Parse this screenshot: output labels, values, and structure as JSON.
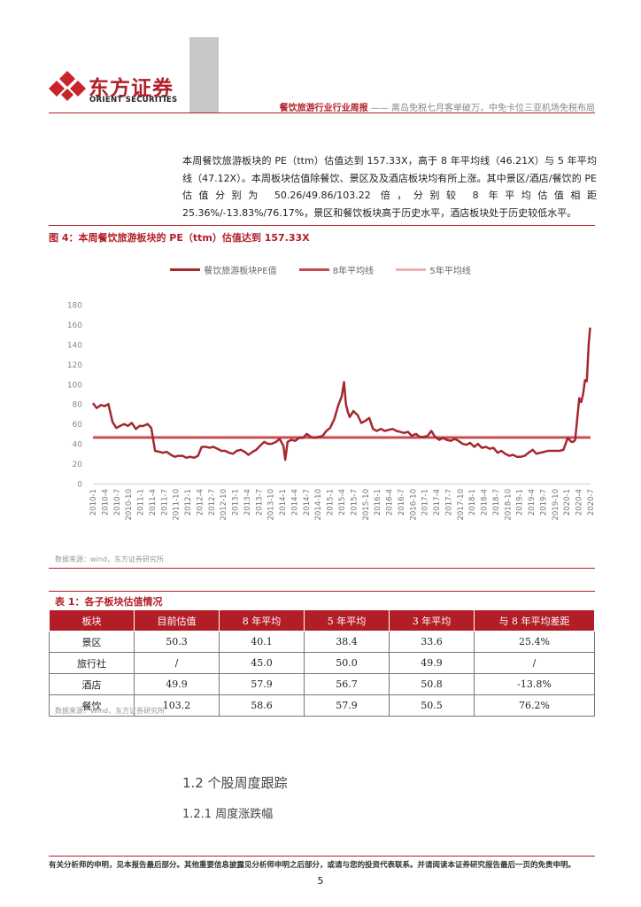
{
  "header": {
    "logo_cn": "东方证券",
    "logo_en": "ORIENT SECURITIES",
    "report_type": "餐饮旅游行业行业周报",
    "separator": "——",
    "report_subtitle": "离岛免税七月客单破万，中免卡位三亚机场免税布局"
  },
  "paragraph": "本周餐饮旅游板块的 PE（ttm）估值达到 157.33X，高于 8 年平均线（46.21X）与 5 年平均线（47.12X）。本周板块估值除餐饮、景区及及酒店板块均有所上涨。其中景区/酒店/餐饮的 PE 估值分别为 50.26/49.86/103.22 倍，分别较 8 年平均估值相距 25.36%/-13.83%/76.17%，景区和餐饮板块高于历史水平，酒店板块处于历史较低水平。",
  "figure": {
    "title": "图 4：本周餐饮旅游板块的 PE（ttm）估值达到 157.33X",
    "source": "数据来源：wind，东方证券研究所"
  },
  "chart_data": {
    "type": "line",
    "title": "",
    "xlabel": "",
    "ylabel": "",
    "ylim": [
      0,
      180
    ],
    "yticks": [
      0,
      20,
      40,
      60,
      80,
      100,
      120,
      140,
      160,
      180
    ],
    "xticks": [
      "2010-1",
      "2010-4",
      "2010-7",
      "2010-10",
      "2011-1",
      "2011-4",
      "2011-7",
      "2011-10",
      "2012-1",
      "2012-4",
      "2012-7",
      "2012-10",
      "2013-1",
      "2013-4",
      "2013-7",
      "2013-10",
      "2014-1",
      "2014-4",
      "2014-7",
      "2014-10",
      "2015-1",
      "2015-4",
      "2015-7",
      "2015-10",
      "2016-1",
      "2016-4",
      "2016-7",
      "2016-10",
      "2017-1",
      "2017-4",
      "2017-7",
      "2017-10",
      "2018-1",
      "2018-4",
      "2018-7",
      "2018-10",
      "2019-1",
      "2019-4",
      "2019-7",
      "2019-10",
      "2020-1",
      "2020-4",
      "2020-7"
    ],
    "legend_position": "top",
    "grid": false,
    "colors": {
      "pe": "#a3292f",
      "avg8": "#c44a4f",
      "avg5": "#eeb1b3"
    },
    "series": [
      {
        "name": "餐饮旅游板块PE值",
        "x": [
          2010.0,
          2010.08,
          2010.17,
          2010.25,
          2010.33,
          2010.42,
          2010.5,
          2010.58,
          2010.67,
          2010.75,
          2010.83,
          2010.92,
          2011.0,
          2011.08,
          2011.17,
          2011.25,
          2011.33,
          2011.42,
          2011.5,
          2011.58,
          2011.67,
          2011.75,
          2011.83,
          2011.92,
          2012.0,
          2012.08,
          2012.17,
          2012.25,
          2012.33,
          2012.42,
          2012.5,
          2012.58,
          2012.67,
          2012.75,
          2012.83,
          2012.92,
          2013.0,
          2013.08,
          2013.17,
          2013.25,
          2013.33,
          2013.42,
          2013.5,
          2013.58,
          2013.67,
          2013.75,
          2013.83,
          2013.92,
          2014.0,
          2014.08,
          2014.12,
          2014.17,
          2014.25,
          2014.33,
          2014.42,
          2014.5,
          2014.58,
          2014.67,
          2014.75,
          2014.83,
          2014.92,
          2015.0,
          2015.08,
          2015.17,
          2015.25,
          2015.33,
          2015.38,
          2015.42,
          2015.46,
          2015.5,
          2015.58,
          2015.67,
          2015.75,
          2015.83,
          2015.92,
          2016.0,
          2016.08,
          2016.17,
          2016.25,
          2016.33,
          2016.42,
          2016.5,
          2016.58,
          2016.67,
          2016.75,
          2016.83,
          2016.92,
          2017.0,
          2017.08,
          2017.17,
          2017.25,
          2017.33,
          2017.42,
          2017.5,
          2017.58,
          2017.67,
          2017.75,
          2017.83,
          2017.92,
          2018.0,
          2018.08,
          2018.17,
          2018.25,
          2018.33,
          2018.42,
          2018.5,
          2018.58,
          2018.67,
          2018.75,
          2018.83,
          2018.92,
          2019.0,
          2019.08,
          2019.17,
          2019.25,
          2019.33,
          2019.42,
          2019.5,
          2019.58,
          2019.67,
          2019.75,
          2019.83,
          2019.92,
          2020.0,
          2020.08,
          2020.17,
          2020.25,
          2020.29,
          2020.33,
          2020.42,
          2020.46,
          2020.5,
          2020.54,
          2020.58,
          2020.62,
          2020.65
        ],
        "values": [
          81,
          76,
          79,
          78,
          80,
          62,
          56,
          58,
          60,
          58,
          61,
          55,
          58,
          58,
          60,
          56,
          33,
          32,
          31,
          32,
          29,
          27,
          28,
          28,
          26,
          27,
          26,
          28,
          37,
          37,
          36,
          37,
          35,
          33,
          33,
          31,
          30,
          33,
          34,
          32,
          29,
          32,
          34,
          38,
          42,
          40,
          40,
          42,
          45,
          38,
          24,
          42,
          44,
          43,
          46,
          46,
          50,
          47,
          46,
          47,
          48,
          53,
          56,
          65,
          78,
          88,
          102,
          80,
          72,
          67,
          73,
          69,
          61,
          63,
          66,
          55,
          53,
          55,
          53,
          54,
          55,
          53,
          52,
          51,
          52,
          48,
          50,
          47,
          47,
          48,
          53,
          47,
          44,
          46,
          44,
          43,
          45,
          43,
          40,
          39,
          41,
          37,
          40,
          36,
          37,
          35,
          36,
          31,
          33,
          30,
          28,
          29,
          27,
          27,
          28,
          31,
          34,
          30,
          31,
          32,
          33,
          33,
          33,
          33,
          34,
          46,
          42,
          42,
          44,
          86,
          82,
          90,
          104,
          103,
          140,
          157
        ]
      },
      {
        "name": "8年平均线",
        "value": 46.21
      },
      {
        "name": "5年平均线",
        "value": 47.12
      }
    ]
  },
  "table": {
    "title": "表 1：各子板块估值情况",
    "headers": [
      "板块",
      "目前估值",
      "8 年平均",
      "5 年平均",
      "3 年平均",
      "与 8 年平均差距"
    ],
    "rows": [
      [
        "景区",
        "50.3",
        "40.1",
        "38.4",
        "33.6",
        "25.4%"
      ],
      [
        "旅行社",
        "/",
        "45.0",
        "50.0",
        "49.9",
        "/"
      ],
      [
        "酒店",
        "49.9",
        "57.9",
        "56.7",
        "50.8",
        "-13.8%"
      ],
      [
        "餐饮",
        "103.2",
        "58.6",
        "57.9",
        "50.5",
        "76.2%"
      ]
    ],
    "source": "数据来源：Wind，东方证券研究所"
  },
  "sections": {
    "h2": "1.2 个股周度跟踪",
    "h3": "1.2.1 周度涨跌幅"
  },
  "footer": {
    "disclaimer": "有关分析师的申明，见本报告最后部分。其他重要信息披露见分析师申明之后部分，或请与您的投资代表联系。并请阅读本证券研究报告最后一页的免责申明。",
    "page_number": "5"
  }
}
